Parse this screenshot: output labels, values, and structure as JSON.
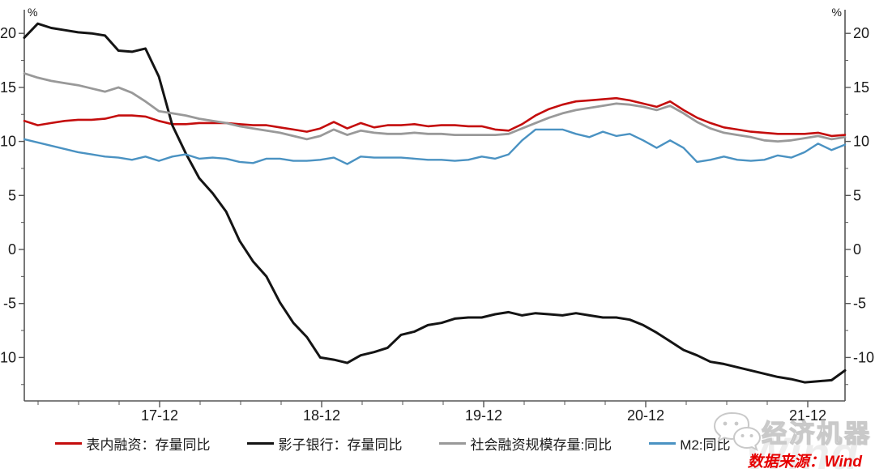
{
  "chart_data": {
    "type": "line",
    "title": "",
    "xlabel": "",
    "ylabel": "%",
    "unit_label_left": "%",
    "unit_label_right": "%",
    "grid": false,
    "legend_position": "bottom",
    "ylim": [
      -13.8,
      22.2
    ],
    "y_major_ticks": [
      20,
      15,
      10,
      5,
      0,
      -5,
      -10
    ],
    "y_tick_labels": [
      "20",
      "15",
      "10",
      "5",
      "0",
      "-5",
      "-10"
    ],
    "x_major_tick_labels": [
      "17-12",
      "18-12",
      "19-12",
      "20-12",
      "21-12"
    ],
    "x": [
      "2017-02",
      "2017-03",
      "2017-04",
      "2017-05",
      "2017-06",
      "2017-07",
      "2017-08",
      "2017-09",
      "2017-10",
      "2017-11",
      "2017-12",
      "2018-01",
      "2018-02",
      "2018-03",
      "2018-04",
      "2018-05",
      "2018-06",
      "2018-07",
      "2018-08",
      "2018-09",
      "2018-10",
      "2018-11",
      "2018-12",
      "2019-01",
      "2019-02",
      "2019-03",
      "2019-04",
      "2019-05",
      "2019-06",
      "2019-07",
      "2019-08",
      "2019-09",
      "2019-10",
      "2019-11",
      "2019-12",
      "2020-01",
      "2020-02",
      "2020-03",
      "2020-04",
      "2020-05",
      "2020-06",
      "2020-07",
      "2020-08",
      "2020-09",
      "2020-10",
      "2020-11",
      "2020-12",
      "2021-01",
      "2021-02",
      "2021-03",
      "2021-04",
      "2021-05",
      "2021-06",
      "2021-07",
      "2021-08",
      "2021-09",
      "2021-10",
      "2021-11",
      "2021-12",
      "2022-01",
      "2022-02",
      "2022-03"
    ],
    "series": [
      {
        "name": "表内融资：存量同比",
        "color": "#c40d0d",
        "line_width": 2.6,
        "values": [
          11.9,
          11.5,
          11.7,
          11.9,
          12.0,
          12.0,
          12.1,
          12.4,
          12.4,
          12.3,
          11.9,
          11.6,
          11.6,
          11.7,
          11.7,
          11.7,
          11.6,
          11.5,
          11.5,
          11.3,
          11.1,
          10.9,
          11.2,
          11.8,
          11.2,
          11.7,
          11.3,
          11.5,
          11.5,
          11.6,
          11.4,
          11.5,
          11.5,
          11.4,
          11.4,
          11.1,
          11.0,
          11.6,
          12.4,
          13.0,
          13.4,
          13.7,
          13.8,
          13.9,
          14.0,
          13.8,
          13.5,
          13.2,
          13.7,
          12.9,
          12.2,
          11.7,
          11.3,
          11.1,
          10.9,
          10.8,
          10.7,
          10.7,
          10.7,
          10.8,
          10.5,
          10.6
        ]
      },
      {
        "name": "影子银行：存量同比",
        "color": "#141414",
        "line_width": 3,
        "values": [
          19.6,
          20.9,
          20.5,
          20.3,
          20.1,
          20.0,
          19.8,
          18.4,
          18.3,
          18.6,
          16.0,
          11.5,
          8.9,
          6.6,
          5.2,
          3.5,
          0.8,
          -1.1,
          -2.5,
          -4.9,
          -6.8,
          -8.1,
          -10.0,
          -10.2,
          -10.5,
          -9.8,
          -9.5,
          -9.1,
          -7.9,
          -7.6,
          -7.0,
          -6.8,
          -6.4,
          -6.3,
          -6.3,
          -6.0,
          -5.8,
          -6.1,
          -5.9,
          -6.0,
          -6.1,
          -5.9,
          -6.1,
          -6.3,
          -6.3,
          -6.5,
          -7.0,
          -7.7,
          -8.5,
          -9.3,
          -9.8,
          -10.4,
          -10.6,
          -10.9,
          -11.2,
          -11.5,
          -11.8,
          -12.0,
          -12.3,
          -12.2,
          -12.1,
          -11.2
        ]
      },
      {
        "name": "社会融资规模存量:同比",
        "color": "#999999",
        "line_width": 2.8,
        "values": [
          16.3,
          15.9,
          15.6,
          15.4,
          15.2,
          14.9,
          14.6,
          15.0,
          14.5,
          13.7,
          12.8,
          12.6,
          12.4,
          12.1,
          11.9,
          11.7,
          11.4,
          11.2,
          11.0,
          10.8,
          10.5,
          10.2,
          10.5,
          11.1,
          10.6,
          11.0,
          10.8,
          10.7,
          10.7,
          10.8,
          10.7,
          10.7,
          10.6,
          10.6,
          10.6,
          10.6,
          10.7,
          11.2,
          11.7,
          12.2,
          12.6,
          12.9,
          13.1,
          13.3,
          13.5,
          13.4,
          13.2,
          12.9,
          13.3,
          12.6,
          11.8,
          11.2,
          10.8,
          10.6,
          10.4,
          10.1,
          10.0,
          10.1,
          10.3,
          10.5,
          10.2,
          10.4
        ]
      },
      {
        "name": "M2:同比",
        "color": "#4a92c2",
        "line_width": 2.4,
        "values": [
          10.2,
          9.9,
          9.6,
          9.3,
          9.0,
          8.8,
          8.6,
          8.5,
          8.3,
          8.6,
          8.2,
          8.6,
          8.8,
          8.4,
          8.5,
          8.4,
          8.1,
          8.0,
          8.4,
          8.4,
          8.2,
          8.2,
          8.3,
          8.5,
          7.9,
          8.6,
          8.5,
          8.5,
          8.5,
          8.4,
          8.3,
          8.3,
          8.2,
          8.3,
          8.6,
          8.4,
          8.8,
          10.1,
          11.1,
          11.1,
          11.1,
          10.7,
          10.4,
          10.9,
          10.5,
          10.7,
          10.1,
          9.4,
          10.1,
          9.4,
          8.1,
          8.3,
          8.6,
          8.3,
          8.2,
          8.3,
          8.7,
          8.5,
          9.0,
          9.8,
          9.2,
          9.7
        ]
      }
    ]
  },
  "legend": [
    {
      "label": "表内融资：存量同比",
      "color": "#c40d0d"
    },
    {
      "label": "影子银行：存量同比",
      "color": "#141414"
    },
    {
      "label": "社会融资规模存量:同比",
      "color": "#999999"
    },
    {
      "label": "M2:同比",
      "color": "#4a92c2"
    }
  ],
  "watermark": {
    "brand_text": "经济机器",
    "background_text": "Wind",
    "wechat_icon": "wechat-logo"
  },
  "source": {
    "text": "数据来源：Wind"
  },
  "layout_colors": {
    "axis": "#555555",
    "tick_label": "#1a1a1a",
    "background": "#ffffff"
  }
}
